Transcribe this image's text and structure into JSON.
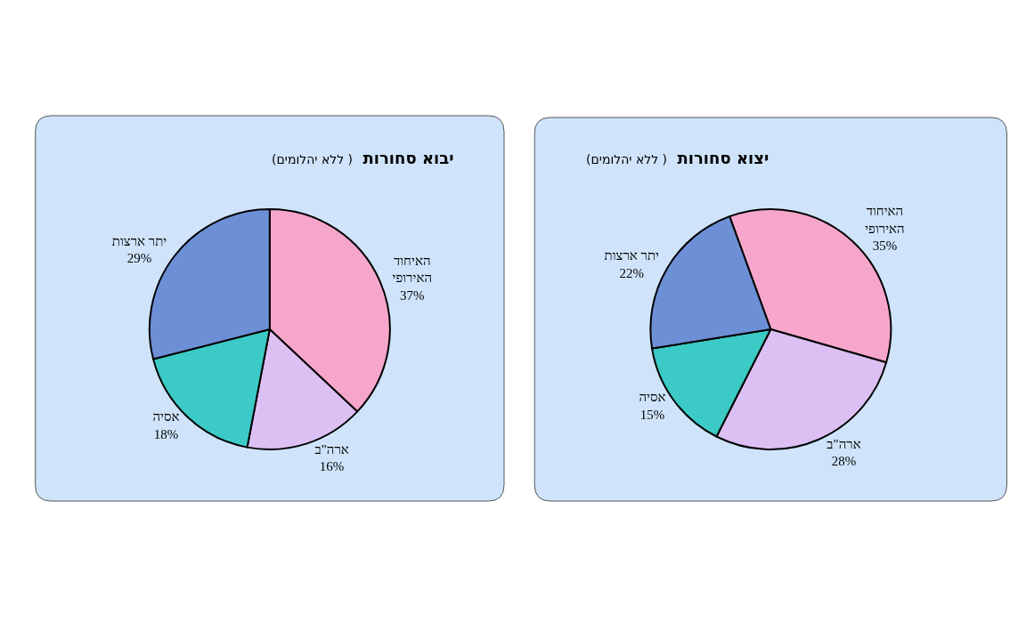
{
  "chart_data": [
    {
      "type": "pie",
      "title": "יבוא סחורות",
      "subtitle": "( ללא יהלומים)",
      "categories": [
        "האיחוד האירופי",
        "ארה\"ב",
        "אסיה",
        "יתר ארצות"
      ],
      "values": [
        37,
        16,
        18,
        29
      ],
      "value_labels": [
        "37%",
        "16%",
        "18%",
        "29%"
      ],
      "colors": [
        "#f7a6cb",
        "#dcc0f4",
        "#3ccac6",
        "#6d8fd6"
      ]
    },
    {
      "type": "pie",
      "title": "יצוא סחורות",
      "subtitle": "( ללא יהלומים)",
      "categories": [
        "האיחוד האירופי",
        "ארה\"ב",
        "אסיה",
        "יתר ארצות"
      ],
      "values": [
        35,
        28,
        15,
        22
      ],
      "value_labels": [
        "35%",
        "28%",
        "15%",
        "22%"
      ],
      "colors": [
        "#f7a6cb",
        "#dcc0f4",
        "#3ccac6",
        "#6d8fd6"
      ]
    }
  ]
}
